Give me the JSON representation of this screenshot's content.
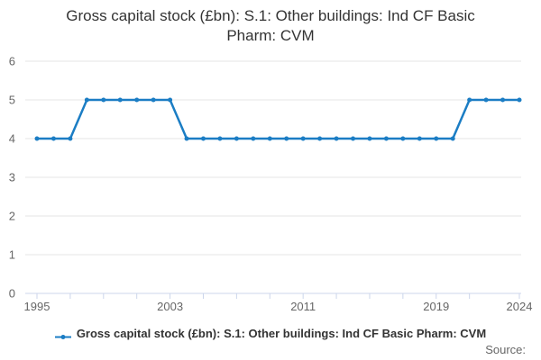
{
  "title": "Gross capital stock (£bn): S.1: Other buildings: Ind CF Basic Pharm: CVM",
  "legend": {
    "label": "Gross capital stock (£bn): S.1: Other buildings: Ind CF Basic Pharm: CVM"
  },
  "source_label": "Source:",
  "colors": {
    "line": "#1b7dc4",
    "grid": "#e6e6e6",
    "axis": "#ccd6eb",
    "axis_label": "#666666",
    "title_text": "#333333"
  },
  "chart_data": {
    "type": "line",
    "title": "Gross capital stock (£bn): S.1: Other buildings: Ind CF Basic Pharm: CVM",
    "xlabel": "",
    "ylabel": "",
    "x": [
      1995,
      1996,
      1997,
      1998,
      1999,
      2000,
      2001,
      2002,
      2003,
      2004,
      2005,
      2006,
      2007,
      2008,
      2009,
      2010,
      2011,
      2012,
      2013,
      2014,
      2015,
      2016,
      2017,
      2018,
      2019,
      2020,
      2021,
      2022,
      2023,
      2024
    ],
    "series": [
      {
        "name": "Gross capital stock (£bn): S.1: Other buildings: Ind CF Basic Pharm: CVM",
        "values": [
          4,
          4,
          4,
          5,
          5,
          5,
          5,
          5,
          5,
          4,
          4,
          4,
          4,
          4,
          4,
          4,
          4,
          4,
          4,
          4,
          4,
          4,
          4,
          4,
          4,
          4,
          5,
          5,
          5,
          5
        ]
      }
    ],
    "ylim": [
      0,
      6
    ],
    "yticks": [
      0,
      1,
      2,
      3,
      4,
      5,
      6
    ],
    "xticks": [
      1995,
      1997,
      1999,
      2001,
      2003,
      2005,
      2007,
      2009,
      2011,
      2013,
      2015,
      2017,
      2019,
      2021,
      2024
    ],
    "xlabels": [
      1995,
      2003,
      2011,
      2019,
      2024
    ],
    "grid": true,
    "legend_position": "bottom",
    "markers": true
  }
}
